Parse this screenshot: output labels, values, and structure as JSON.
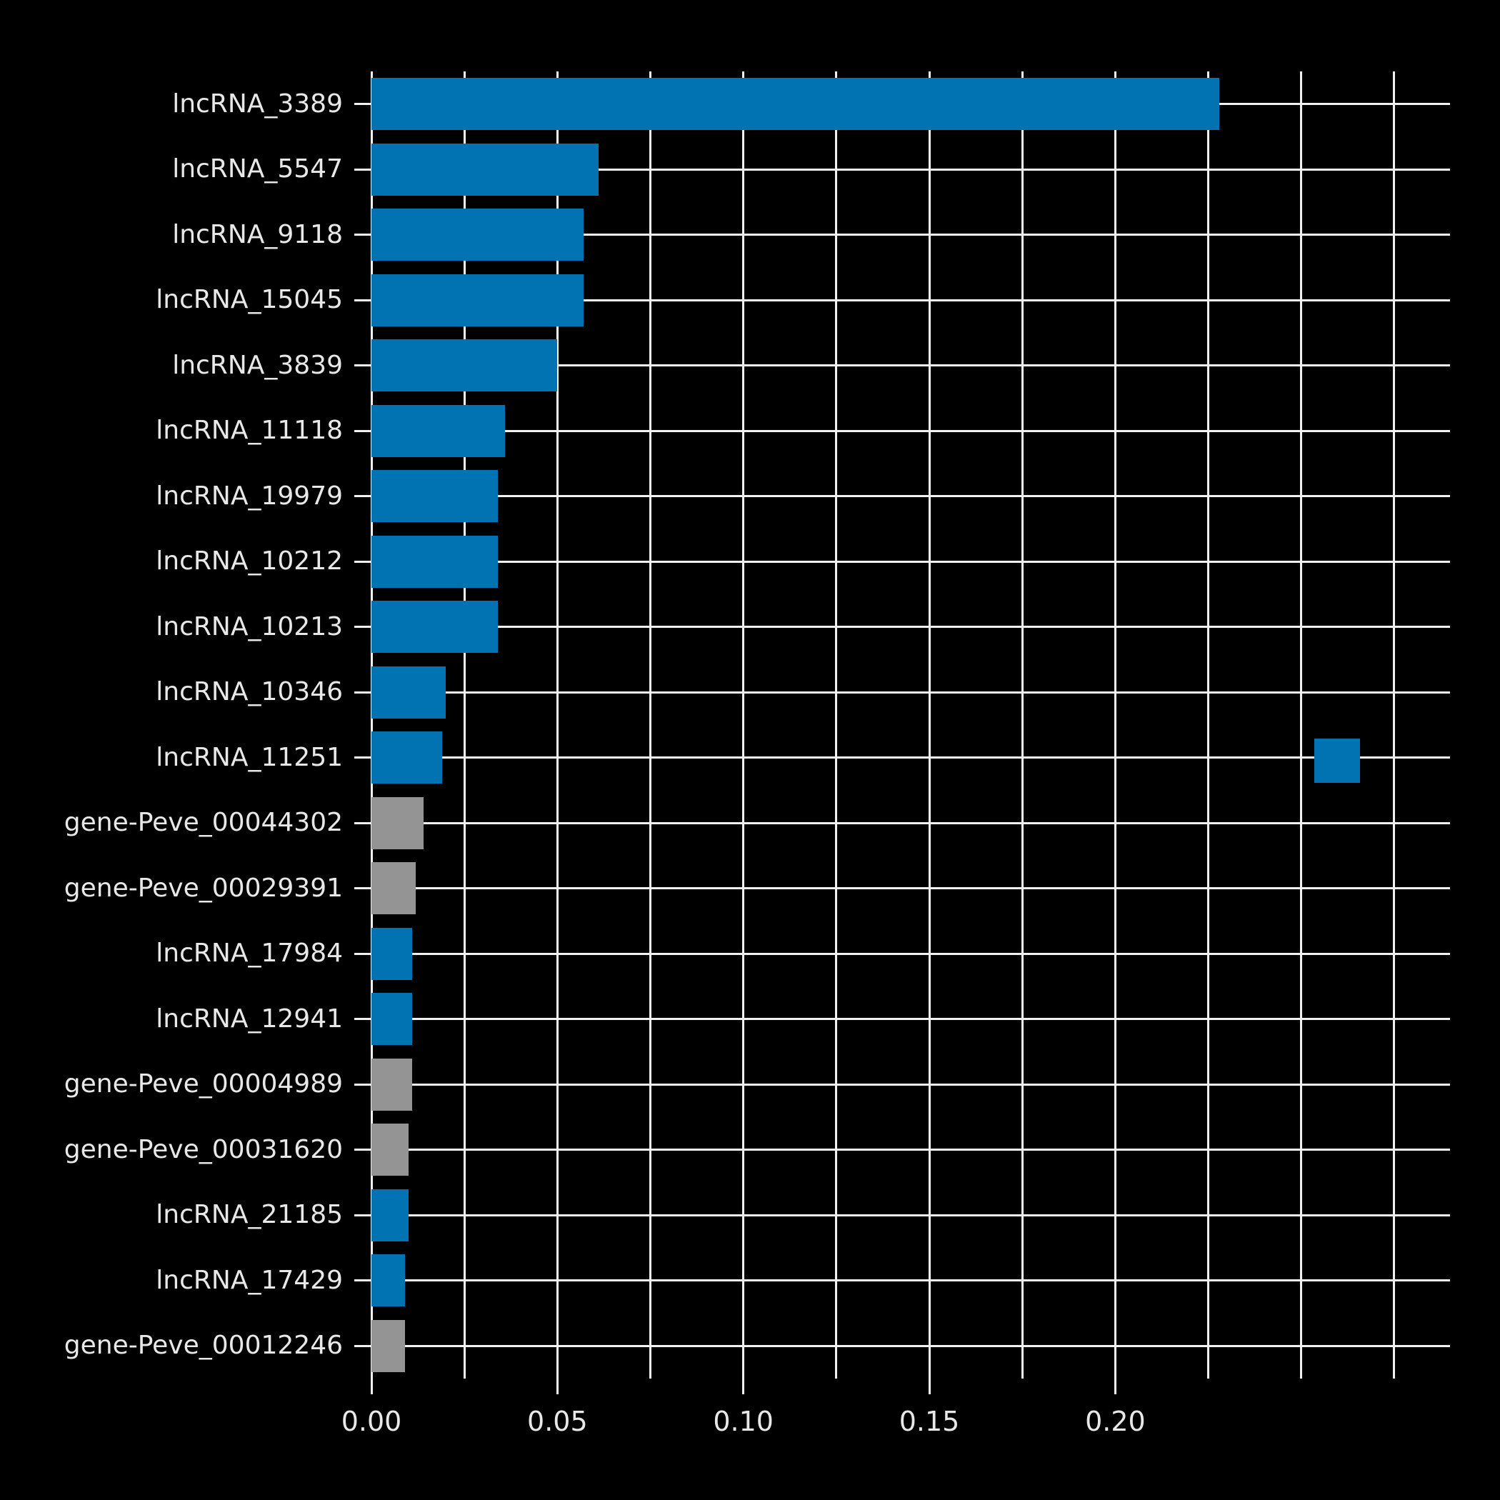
{
  "chart_data": {
    "type": "bar",
    "orientation": "horizontal",
    "title": "",
    "xlabel": "",
    "ylabel": "",
    "xlim": [
      0,
      0.29
    ],
    "grid": true,
    "grid_step": 0.025,
    "background_color": "#000000",
    "grid_color": "#f2f2f2",
    "text_color": "#e8e8e8",
    "colors": {
      "lncRNA": "#0173b2",
      "gene": "#949494"
    },
    "x_ticks": [
      {
        "value": 0.0,
        "label": "0.00"
      },
      {
        "value": 0.05,
        "label": "0.05"
      },
      {
        "value": 0.1,
        "label": "0.10"
      },
      {
        "value": 0.15,
        "label": "0.15"
      },
      {
        "value": 0.2,
        "label": "0.20"
      }
    ],
    "bars": [
      {
        "label": "lncRNA_3389",
        "value": 0.228,
        "group": "lncRNA"
      },
      {
        "label": "lncRNA_5547",
        "value": 0.061,
        "group": "lncRNA"
      },
      {
        "label": "lncRNA_9118",
        "value": 0.057,
        "group": "lncRNA"
      },
      {
        "label": "lncRNA_15045",
        "value": 0.057,
        "group": "lncRNA"
      },
      {
        "label": "lncRNA_3839",
        "value": 0.05,
        "group": "lncRNA"
      },
      {
        "label": "lncRNA_11118",
        "value": 0.036,
        "group": "lncRNA"
      },
      {
        "label": "lncRNA_19979",
        "value": 0.034,
        "group": "lncRNA"
      },
      {
        "label": "lncRNA_10212",
        "value": 0.034,
        "group": "lncRNA"
      },
      {
        "label": "lncRNA_10213",
        "value": 0.034,
        "group": "lncRNA"
      },
      {
        "label": "lncRNA_10346",
        "value": 0.02,
        "group": "lncRNA"
      },
      {
        "label": "lncRNA_11251",
        "value": 0.019,
        "group": "lncRNA"
      },
      {
        "label": "gene-Peve_00044302",
        "value": 0.014,
        "group": "gene"
      },
      {
        "label": "gene-Peve_00029391",
        "value": 0.012,
        "group": "gene"
      },
      {
        "label": "lncRNA_17984",
        "value": 0.011,
        "group": "lncRNA"
      },
      {
        "label": "lncRNA_12941",
        "value": 0.011,
        "group": "lncRNA"
      },
      {
        "label": "gene-Peve_00004989",
        "value": 0.011,
        "group": "gene"
      },
      {
        "label": "gene-Peve_00031620",
        "value": 0.01,
        "group": "gene"
      },
      {
        "label": "lncRNA_21185",
        "value": 0.01,
        "group": "lncRNA"
      },
      {
        "label": "lncRNA_17429",
        "value": 0.009,
        "group": "lncRNA"
      },
      {
        "label": "gene-Peve_00012246",
        "value": 0.009,
        "group": "gene"
      }
    ],
    "legend": {
      "swatch_color": "#0173b2"
    }
  }
}
